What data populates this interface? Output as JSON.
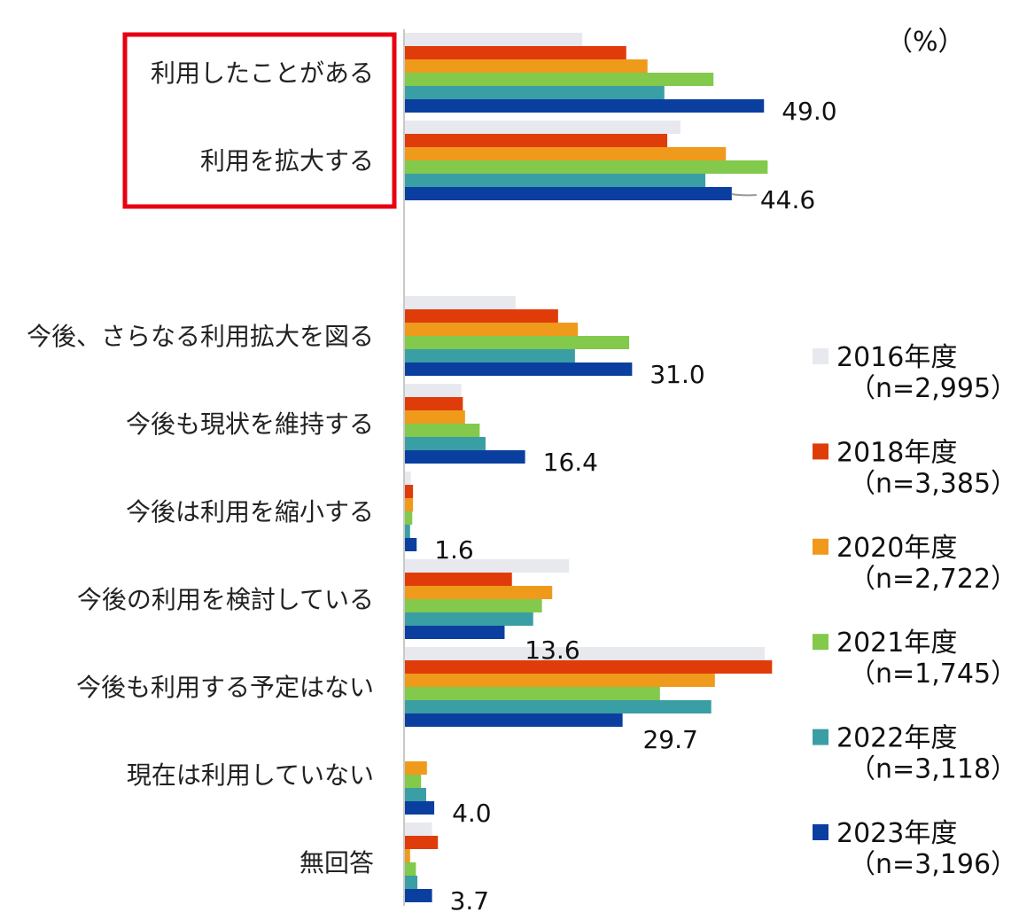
{
  "chart_data": {
    "type": "bar",
    "orientation": "horizontal",
    "unit_label": "（%）",
    "categories": [
      "利用したことがある",
      "利用を拡大する",
      "今後、さらなる利用拡大を図る",
      "今後も現状を維持する",
      "今後は利用を縮小する",
      "今後の利用を検討している",
      "今後も利用する予定はない",
      "現在は利用していない",
      "無回答"
    ],
    "highlighted_categories": [
      "利用したことがある",
      "利用を拡大する"
    ],
    "xlim": [
      0,
      50
    ],
    "grid": false,
    "legend_position": "right",
    "series": [
      {
        "name": "2016年度",
        "n_label": "（n=2,995）",
        "color": "#e8e9ee",
        "values": [
          24.2,
          37.6,
          15.1,
          7.7,
          0.8,
          22.4,
          49.1,
          0,
          3.7
        ]
      },
      {
        "name": "2018年度",
        "n_label": "（n=3,385）",
        "color": "#e03c0a",
        "values": [
          30.2,
          35.8,
          20.9,
          7.9,
          1.1,
          14.6,
          50.1,
          0,
          4.5
        ]
      },
      {
        "name": "2020年度",
        "n_label": "（n=2,722）",
        "color": "#f09a1c",
        "values": [
          33.1,
          43.8,
          23.6,
          8.2,
          1.1,
          20.1,
          42.3,
          3.0,
          0.7
        ]
      },
      {
        "name": "2021年度",
        "n_label": "（n=1,745）",
        "color": "#82c94c",
        "values": [
          42.1,
          49.5,
          30.6,
          10.2,
          1.0,
          18.7,
          34.8,
          2.2,
          1.5
        ]
      },
      {
        "name": "2022年度",
        "n_label": "（n=3,118）",
        "color": "#3a9ea5",
        "values": [
          35.4,
          41.0,
          23.2,
          11.0,
          0.7,
          17.5,
          41.8,
          2.9,
          1.7
        ]
      },
      {
        "name": "2023年度",
        "n_label": "（n=3,196）",
        "color": "#0a3fa0",
        "values": [
          49.0,
          44.6,
          31.0,
          16.4,
          1.6,
          13.6,
          29.7,
          4.0,
          3.7
        ]
      }
    ],
    "data_labels": [
      "49.0",
      "44.6",
      "31.0",
      "16.4",
      "1.6",
      "13.6",
      "29.7",
      "4.0",
      "3.7"
    ],
    "highlight_color": "#e60012"
  }
}
